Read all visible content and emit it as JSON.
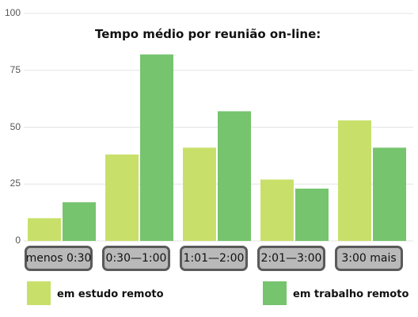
{
  "chart_data": {
    "type": "bar",
    "title": "Tempo médio por reunião on-line:",
    "xlabel": "",
    "ylabel": "",
    "categories": [
      "menos 0:30",
      "0:30—1:00",
      "1:01—2:00",
      "2:01—3:00",
      "3:00 mais"
    ],
    "ylim": [
      0,
      100
    ],
    "yticks": [
      "0",
      "25",
      "50",
      "75",
      "100"
    ],
    "grid": true,
    "legend_position": "bottom",
    "series": [
      {
        "name": "em estudo remoto",
        "color": "#c8e06a",
        "values": [
          10,
          38,
          41,
          27,
          53
        ]
      },
      {
        "name": "em trabalho remoto",
        "color": "#76c46e",
        "values": [
          17,
          82,
          57,
          23,
          41
        ]
      }
    ]
  }
}
